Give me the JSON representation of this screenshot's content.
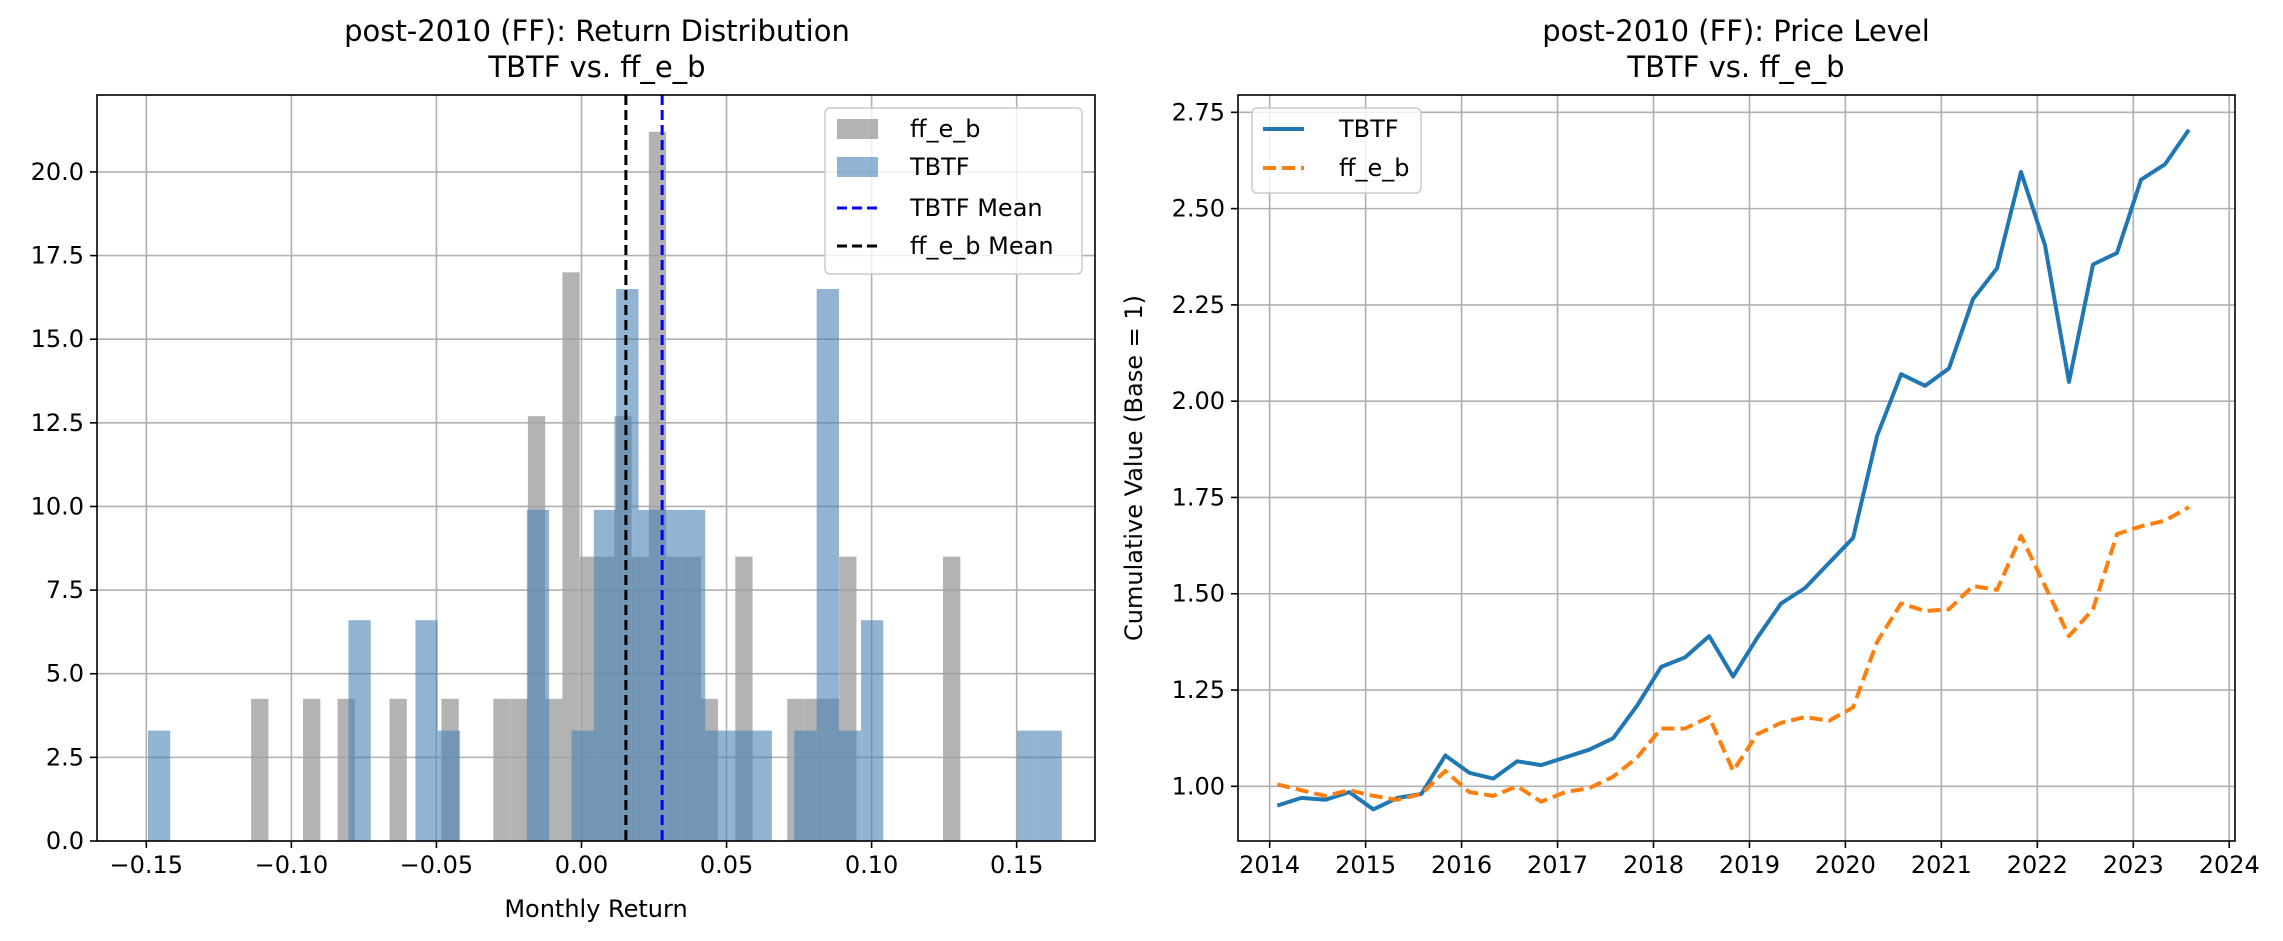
{
  "chart_data": [
    {
      "type": "histogram",
      "title_line1": "post-2010 (FF): Return Distribution",
      "title_line2": "TBTF vs. ff_e_b",
      "xlabel": "Monthly Return",
      "ylabel": "",
      "xlim": [
        -0.167,
        0.177
      ],
      "ylim": [
        0,
        22.3
      ],
      "xticks": [
        -0.15,
        -0.1,
        -0.05,
        0.0,
        0.05,
        0.1,
        0.15
      ],
      "xtick_labels": [
        "−0.15",
        "−0.10",
        "−0.05",
        "0.00",
        "0.05",
        "0.10",
        "0.15"
      ],
      "yticks": [
        0,
        2.5,
        5,
        7.5,
        10,
        12.5,
        15,
        17.5,
        20
      ],
      "ytick_labels": [
        "0.0",
        "2.5",
        "5.0",
        "7.5",
        "10.0",
        "12.5",
        "15.0",
        "17.5",
        "20.0"
      ],
      "grid": true,
      "legend_position": "top-right",
      "series": [
        {
          "name": "ff_e_b",
          "color": "#a0a0a0",
          "opacity": 0.8,
          "bin_width": 0.00596,
          "bins": [
            {
              "x": -0.1109,
              "y": 4.25
            },
            {
              "x": -0.093,
              "y": 4.25
            },
            {
              "x": -0.0811,
              "y": 4.25
            },
            {
              "x": -0.0632,
              "y": 4.25
            },
            {
              "x": -0.0453,
              "y": 4.25
            },
            {
              "x": -0.0274,
              "y": 4.25
            },
            {
              "x": -0.0214,
              "y": 4.25
            },
            {
              "x": -0.0155,
              "y": 12.7
            },
            {
              "x": -0.0095,
              "y": 4.25
            },
            {
              "x": -0.0036,
              "y": 17.0
            },
            {
              "x": 0.0024,
              "y": 8.5
            },
            {
              "x": 0.0084,
              "y": 8.5
            },
            {
              "x": 0.0143,
              "y": 12.7
            },
            {
              "x": 0.0203,
              "y": 8.5
            },
            {
              "x": 0.0262,
              "y": 21.2
            },
            {
              "x": 0.0322,
              "y": 8.5
            },
            {
              "x": 0.0382,
              "y": 8.5
            },
            {
              "x": 0.0441,
              "y": 4.25
            },
            {
              "x": 0.056,
              "y": 8.5
            },
            {
              "x": 0.0739,
              "y": 4.25
            },
            {
              "x": 0.0799,
              "y": 4.25
            },
            {
              "x": 0.0859,
              "y": 4.25
            },
            {
              "x": 0.0918,
              "y": 8.5
            },
            {
              "x": 0.1276,
              "y": 8.5
            }
          ]
        },
        {
          "name": "TBTF",
          "color": "#4682b4",
          "opacity": 0.6,
          "bin_width": 0.00768,
          "bins": [
            {
              "x": -0.1456,
              "y": 3.3
            },
            {
              "x": -0.0765,
              "y": 6.6
            },
            {
              "x": -0.0534,
              "y": 6.6
            },
            {
              "x": -0.0457,
              "y": 3.3
            },
            {
              "x": -0.015,
              "y": 9.9
            },
            {
              "x": 0.0004,
              "y": 3.3
            },
            {
              "x": 0.0081,
              "y": 9.9
            },
            {
              "x": 0.0158,
              "y": 16.5
            },
            {
              "x": 0.0234,
              "y": 9.9
            },
            {
              "x": 0.0311,
              "y": 9.9
            },
            {
              "x": 0.0388,
              "y": 9.9
            },
            {
              "x": 0.0465,
              "y": 3.3
            },
            {
              "x": 0.0542,
              "y": 3.3
            },
            {
              "x": 0.0618,
              "y": 3.3
            },
            {
              "x": 0.0772,
              "y": 3.3
            },
            {
              "x": 0.0849,
              "y": 16.5
            },
            {
              "x": 0.0925,
              "y": 3.3
            },
            {
              "x": 0.1002,
              "y": 6.6
            },
            {
              "x": 0.154,
              "y": 3.3
            },
            {
              "x": 0.1617,
              "y": 3.3
            }
          ]
        }
      ],
      "mean_lines": [
        {
          "name": "TBTF Mean",
          "x": 0.0278,
          "color": "#0000ff"
        },
        {
          "name": "ff_e_b Mean",
          "x": 0.0153,
          "color": "#000000"
        }
      ]
    },
    {
      "type": "line",
      "title_line1": "post-2010 (FF): Price Level",
      "title_line2": "TBTF vs. ff_e_b",
      "xlabel": "",
      "ylabel": "Cumulative Value (Base = 1)",
      "xlim": [
        2013.67,
        2024.06
      ],
      "ylim": [
        0.858,
        2.795
      ],
      "xticks": [
        2014,
        2015,
        2016,
        2017,
        2018,
        2019,
        2020,
        2021,
        2022,
        2023,
        2024
      ],
      "xtick_labels": [
        "2014",
        "2015",
        "2016",
        "2017",
        "2018",
        "2019",
        "2020",
        "2021",
        "2022",
        "2023",
        "2024"
      ],
      "yticks": [
        1.0,
        1.25,
        1.5,
        1.75,
        2.0,
        2.25,
        2.5,
        2.75
      ],
      "ytick_labels": [
        "1.00",
        "1.25",
        "1.50",
        "1.75",
        "2.00",
        "2.25",
        "2.50",
        "2.75"
      ],
      "grid": true,
      "legend_position": "top-left",
      "x": [
        2014.08,
        2014.33,
        2014.58,
        2014.83,
        2015.08,
        2015.33,
        2015.58,
        2015.83,
        2016.08,
        2016.33,
        2016.58,
        2016.83,
        2017.08,
        2017.33,
        2017.58,
        2017.83,
        2018.08,
        2018.33,
        2018.58,
        2018.83,
        2019.08,
        2019.33,
        2019.58,
        2019.83,
        2020.08,
        2020.33,
        2020.58,
        2020.83,
        2021.08,
        2021.33,
        2021.58,
        2021.83,
        2022.08,
        2022.33,
        2022.58,
        2022.83,
        2023.08,
        2023.33,
        2023.58
      ],
      "series": [
        {
          "name": "TBTF",
          "color": "#1f77b4",
          "style": "solid",
          "values": [
            0.95,
            0.97,
            0.965,
            0.985,
            0.94,
            0.97,
            0.98,
            1.08,
            1.035,
            1.02,
            1.065,
            1.055,
            1.075,
            1.095,
            1.125,
            1.21,
            1.31,
            1.335,
            1.39,
            1.285,
            1.385,
            1.475,
            1.515,
            1.58,
            1.645,
            1.91,
            2.07,
            2.04,
            2.085,
            2.265,
            2.345,
            2.595,
            2.405,
            2.05,
            2.355,
            2.385,
            2.575,
            2.615,
            2.705
          ]
        },
        {
          "name": "ff_e_b",
          "color": "#ff7f0e",
          "style": "dashed",
          "values": [
            1.005,
            0.99,
            0.975,
            0.99,
            0.975,
            0.965,
            0.98,
            1.04,
            0.985,
            0.975,
            1.0,
            0.96,
            0.985,
            0.995,
            1.025,
            1.075,
            1.15,
            1.15,
            1.18,
            1.04,
            1.135,
            1.165,
            1.18,
            1.17,
            1.205,
            1.375,
            1.475,
            1.455,
            1.46,
            1.52,
            1.51,
            1.65,
            1.52,
            1.39,
            1.46,
            1.655,
            1.675,
            1.69,
            1.725
          ]
        }
      ]
    }
  ]
}
